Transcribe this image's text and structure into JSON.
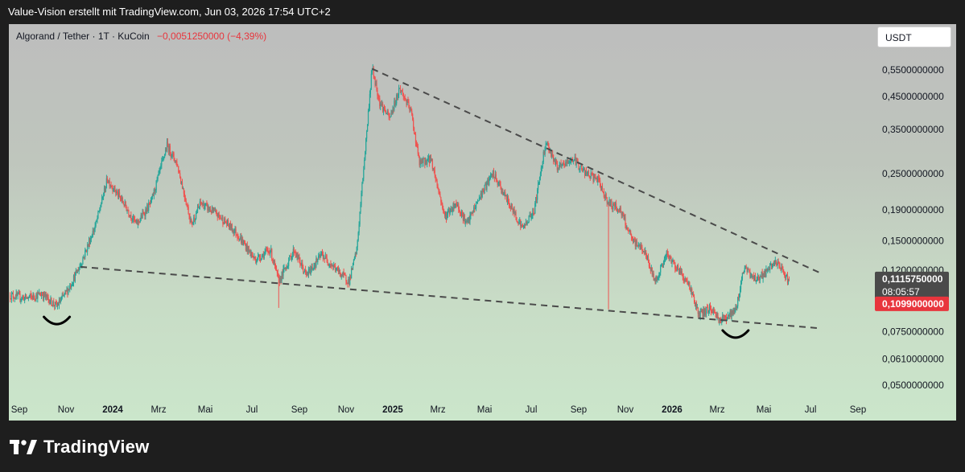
{
  "header": {
    "attribution": "Value-Vision erstellt mit TradingView.com, Jun 03, 2026 17:54 UTC+2"
  },
  "symbol": {
    "label": "Algorand / Tether · 1T · KuCoin",
    "change": "−0,0051250000 (−4,39%)"
  },
  "currency_button": "USDT",
  "price_badges": {
    "last_close": "0,1115750000",
    "countdown": "08:05:57",
    "current": "0,1099000000",
    "last_color": "#4a4a4a",
    "current_color": "#e8353d"
  },
  "footer": {
    "brand": "TradingView"
  },
  "colors": {
    "up": "#26a69a",
    "down": "#ef5350",
    "trendline": "#4a4a4a"
  },
  "chart_data": {
    "type": "candlestick",
    "scale": "log",
    "y_ticks": [
      {
        "value": 0.55,
        "label": "0,5500000000"
      },
      {
        "value": 0.45,
        "label": "0,4500000000"
      },
      {
        "value": 0.35,
        "label": "0,3500000000"
      },
      {
        "value": 0.25,
        "label": "0,2500000000"
      },
      {
        "value": 0.19,
        "label": "0,1900000000"
      },
      {
        "value": 0.15,
        "label": "0,1500000000"
      },
      {
        "value": 0.12,
        "label": "0,1200000000"
      },
      {
        "value": 0.075,
        "label": "0,0750000000"
      },
      {
        "value": 0.061,
        "label": "0,0610000000"
      },
      {
        "value": 0.05,
        "label": "0,0500000000"
      }
    ],
    "x_ticks": [
      {
        "date": "2023-09-01",
        "label": "Sep",
        "bold": false
      },
      {
        "date": "2023-11-01",
        "label": "Nov",
        "bold": false
      },
      {
        "date": "2024-01-01",
        "label": "2024",
        "bold": true
      },
      {
        "date": "2024-03-01",
        "label": "Mrz",
        "bold": false
      },
      {
        "date": "2024-05-01",
        "label": "Mai",
        "bold": false
      },
      {
        "date": "2024-07-01",
        "label": "Jul",
        "bold": false
      },
      {
        "date": "2024-09-01",
        "label": "Sep",
        "bold": false
      },
      {
        "date": "2024-11-01",
        "label": "Nov",
        "bold": false
      },
      {
        "date": "2025-01-01",
        "label": "2025",
        "bold": true
      },
      {
        "date": "2025-03-01",
        "label": "Mrz",
        "bold": false
      },
      {
        "date": "2025-05-01",
        "label": "Mai",
        "bold": false
      },
      {
        "date": "2025-07-01",
        "label": "Jul",
        "bold": false
      },
      {
        "date": "2025-09-01",
        "label": "Sep",
        "bold": false
      },
      {
        "date": "2025-11-01",
        "label": "Nov",
        "bold": false
      },
      {
        "date": "2026-01-01",
        "label": "2026",
        "bold": true
      },
      {
        "date": "2026-03-01",
        "label": "Mrz",
        "bold": false
      },
      {
        "date": "2026-05-01",
        "label": "Mai",
        "bold": false
      },
      {
        "date": "2026-07-01",
        "label": "Jul",
        "bold": false
      },
      {
        "date": "2026-09-01",
        "label": "Sep",
        "bold": false
      }
    ],
    "price_path": [
      [
        "2023-08-20",
        0.099
      ],
      [
        "2023-09-10",
        0.097
      ],
      [
        "2023-10-01",
        0.1
      ],
      [
        "2023-10-20",
        0.091
      ],
      [
        "2023-11-05",
        0.105
      ],
      [
        "2023-11-20",
        0.125
      ],
      [
        "2023-12-10",
        0.17
      ],
      [
        "2023-12-25",
        0.24
      ],
      [
        "2024-01-15",
        0.2
      ],
      [
        "2024-02-01",
        0.17
      ],
      [
        "2024-02-20",
        0.2
      ],
      [
        "2024-03-12",
        0.31
      ],
      [
        "2024-03-25",
        0.27
      ],
      [
        "2024-04-13",
        0.17
      ],
      [
        "2024-04-25",
        0.2
      ],
      [
        "2024-05-20",
        0.18
      ],
      [
        "2024-06-10",
        0.16
      ],
      [
        "2024-07-05",
        0.13
      ],
      [
        "2024-07-25",
        0.14
      ],
      [
        "2024-08-05",
        0.11
      ],
      [
        "2024-08-25",
        0.14
      ],
      [
        "2024-09-10",
        0.115
      ],
      [
        "2024-09-30",
        0.135
      ],
      [
        "2024-10-20",
        0.12
      ],
      [
        "2024-11-05",
        0.11
      ],
      [
        "2024-11-15",
        0.14
      ],
      [
        "2024-11-25",
        0.28
      ],
      [
        "2024-12-05",
        0.56
      ],
      [
        "2024-12-15",
        0.43
      ],
      [
        "2024-12-28",
        0.38
      ],
      [
        "2025-01-10",
        0.48
      ],
      [
        "2025-01-25",
        0.4
      ],
      [
        "2025-02-05",
        0.27
      ],
      [
        "2025-02-20",
        0.28
      ],
      [
        "2025-03-10",
        0.18
      ],
      [
        "2025-03-25",
        0.2
      ],
      [
        "2025-04-08",
        0.17
      ],
      [
        "2025-04-25",
        0.21
      ],
      [
        "2025-05-12",
        0.25
      ],
      [
        "2025-05-28",
        0.21
      ],
      [
        "2025-06-20",
        0.165
      ],
      [
        "2025-07-05",
        0.19
      ],
      [
        "2025-07-20",
        0.32
      ],
      [
        "2025-08-05",
        0.26
      ],
      [
        "2025-08-25",
        0.28
      ],
      [
        "2025-09-10",
        0.25
      ],
      [
        "2025-09-25",
        0.24
      ],
      [
        "2025-10-10",
        0.2
      ],
      [
        "2025-10-25",
        0.19
      ],
      [
        "2025-11-10",
        0.15
      ],
      [
        "2025-11-25",
        0.14
      ],
      [
        "2025-12-10",
        0.11
      ],
      [
        "2025-12-25",
        0.135
      ],
      [
        "2026-01-10",
        0.12
      ],
      [
        "2026-01-25",
        0.105
      ],
      [
        "2026-02-05",
        0.085
      ],
      [
        "2026-02-20",
        0.09
      ],
      [
        "2026-03-05",
        0.082
      ],
      [
        "2026-03-25",
        0.088
      ],
      [
        "2026-04-05",
        0.122
      ],
      [
        "2026-04-20",
        0.112
      ],
      [
        "2026-05-05",
        0.118
      ],
      [
        "2026-05-15",
        0.128
      ],
      [
        "2026-05-25",
        0.12
      ],
      [
        "2026-06-03",
        0.11
      ]
    ],
    "wick_spikes": [
      {
        "date": "2024-08-05",
        "low": 0.09
      },
      {
        "date": "2025-10-10",
        "low": 0.089
      }
    ],
    "trendlines": [
      {
        "name": "upper",
        "from": [
          "2024-12-05",
          0.555
        ],
        "to": [
          "2026-07-15",
          0.117
        ]
      },
      {
        "name": "lower",
        "from": [
          "2023-11-20",
          0.123
        ],
        "to": [
          "2026-07-15",
          0.077
        ]
      }
    ],
    "arcs": [
      {
        "date": "2023-10-20",
        "value": 0.082
      },
      {
        "date": "2026-03-25",
        "value": 0.074
      }
    ]
  }
}
